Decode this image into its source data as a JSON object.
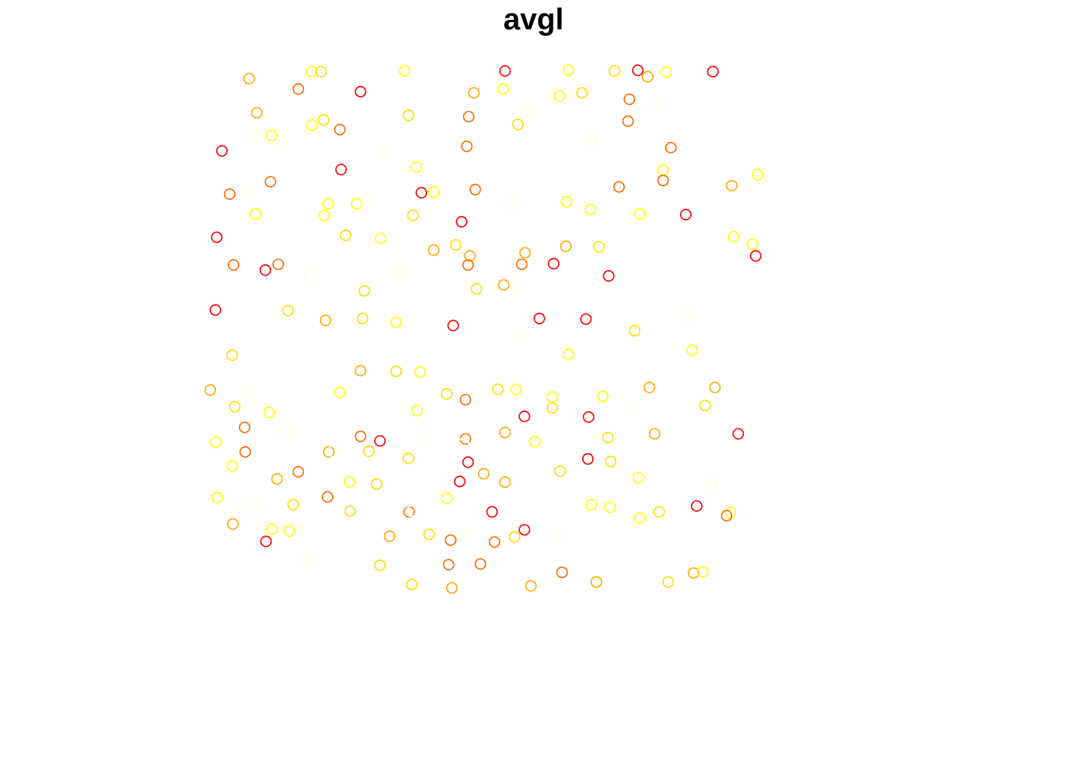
{
  "chart_data": {
    "type": "scatter",
    "title": "avgl",
    "xlabel": "",
    "ylabel": "",
    "xlim": [
      0,
      1
    ],
    "ylim": [
      0,
      1
    ],
    "grid": false,
    "axes_visible": false,
    "legend": "none",
    "marker": "open-circle",
    "color_scale": {
      "name": "heat",
      "low": "#ff0000",
      "high": "#ffffe0",
      "stops": [
        "#ff0000",
        "#ff6a00",
        "#ffaa00",
        "#ffdd00",
        "#ffff00",
        "#ffffe0"
      ]
    },
    "points": [
      {
        "x": 0.061,
        "y": 0.974,
        "c": 2
      },
      {
        "x": 0.158,
        "y": 0.985,
        "c": 4
      },
      {
        "x": 0.172,
        "y": 0.985,
        "c": 3
      },
      {
        "x": 0.137,
        "y": 0.958,
        "c": 1
      },
      {
        "x": 0.233,
        "y": 0.954,
        "c": 0
      },
      {
        "x": 0.301,
        "y": 0.986,
        "c": 4
      },
      {
        "x": 0.456,
        "y": 0.986,
        "c": 0
      },
      {
        "x": 0.554,
        "y": 0.987,
        "c": 4
      },
      {
        "x": 0.625,
        "y": 0.986,
        "c": 3
      },
      {
        "x": 0.661,
        "y": 0.987,
        "c": 0
      },
      {
        "x": 0.676,
        "y": 0.977,
        "c": 2
      },
      {
        "x": 0.705,
        "y": 0.984,
        "c": 4
      },
      {
        "x": 0.777,
        "y": 0.985,
        "c": 0
      },
      {
        "x": 0.408,
        "y": 0.952,
        "c": 2
      },
      {
        "x": 0.54,
        "y": 0.947,
        "c": 4
      },
      {
        "x": 0.575,
        "y": 0.952,
        "c": 3
      },
      {
        "x": 0.646,
        "y": 0.908,
        "c": 1
      },
      {
        "x": 0.073,
        "y": 0.921,
        "c": 2
      },
      {
        "x": 0.096,
        "y": 0.886,
        "c": 4
      },
      {
        "x": 0.158,
        "y": 0.902,
        "c": 4
      },
      {
        "x": 0.176,
        "y": 0.91,
        "c": 3
      },
      {
        "x": 0.201,
        "y": 0.895,
        "c": 1
      },
      {
        "x": 0.307,
        "y": 0.917,
        "c": 3
      },
      {
        "x": 0.4,
        "y": 0.915,
        "c": 1
      },
      {
        "x": 0.453,
        "y": 0.958,
        "c": 4
      },
      {
        "x": 0.476,
        "y": 0.903,
        "c": 3
      },
      {
        "x": 0.492,
        "y": 0.923,
        "c": 5
      },
      {
        "x": 0.648,
        "y": 0.942,
        "c": 1
      },
      {
        "x": 0.693,
        "y": 0.933,
        "c": 5
      },
      {
        "x": 0.019,
        "y": 0.862,
        "c": 0
      },
      {
        "x": 0.066,
        "y": 0.887,
        "c": 5
      },
      {
        "x": 0.112,
        "y": 0.878,
        "c": 5
      },
      {
        "x": 0.271,
        "y": 0.86,
        "c": 5
      },
      {
        "x": 0.397,
        "y": 0.869,
        "c": 1
      },
      {
        "x": 0.589,
        "y": 0.879,
        "c": 5
      },
      {
        "x": 0.712,
        "y": 0.867,
        "c": 1
      },
      {
        "x": 0.7,
        "y": 0.832,
        "c": 4
      },
      {
        "x": 0.203,
        "y": 0.833,
        "c": 0
      },
      {
        "x": 0.319,
        "y": 0.837,
        "c": 4
      },
      {
        "x": 0.094,
        "y": 0.814,
        "c": 1
      },
      {
        "x": 0.031,
        "y": 0.795,
        "c": 1
      },
      {
        "x": 0.055,
        "y": 0.795,
        "c": 5
      },
      {
        "x": 0.327,
        "y": 0.797,
        "c": 0
      },
      {
        "x": 0.346,
        "y": 0.798,
        "c": 4
      },
      {
        "x": 0.41,
        "y": 0.802,
        "c": 1
      },
      {
        "x": 0.632,
        "y": 0.806,
        "c": 1
      },
      {
        "x": 0.7,
        "y": 0.816,
        "c": 1
      },
      {
        "x": 0.806,
        "y": 0.808,
        "c": 2
      },
      {
        "x": 0.846,
        "y": 0.825,
        "c": 4
      },
      {
        "x": 0.183,
        "y": 0.78,
        "c": 4
      },
      {
        "x": 0.244,
        "y": 0.787,
        "c": 5
      },
      {
        "x": 0.227,
        "y": 0.78,
        "c": 4
      },
      {
        "x": 0.071,
        "y": 0.764,
        "c": 4
      },
      {
        "x": 0.177,
        "y": 0.762,
        "c": 4
      },
      {
        "x": 0.314,
        "y": 0.762,
        "c": 3
      },
      {
        "x": 0.389,
        "y": 0.752,
        "c": 0
      },
      {
        "x": 0.471,
        "y": 0.78,
        "c": 5
      },
      {
        "x": 0.551,
        "y": 0.783,
        "c": 4
      },
      {
        "x": 0.588,
        "y": 0.771,
        "c": 4
      },
      {
        "x": 0.664,
        "y": 0.764,
        "c": 4
      },
      {
        "x": 0.735,
        "y": 0.763,
        "c": 0
      },
      {
        "x": 0.011,
        "y": 0.728,
        "c": 0
      },
      {
        "x": 0.21,
        "y": 0.731,
        "c": 3
      },
      {
        "x": 0.264,
        "y": 0.726,
        "c": 4
      },
      {
        "x": 0.346,
        "y": 0.708,
        "c": 2
      },
      {
        "x": 0.38,
        "y": 0.716,
        "c": 3
      },
      {
        "x": 0.402,
        "y": 0.699,
        "c": 2
      },
      {
        "x": 0.487,
        "y": 0.704,
        "c": 2
      },
      {
        "x": 0.55,
        "y": 0.714,
        "c": 2
      },
      {
        "x": 0.601,
        "y": 0.713,
        "c": 3
      },
      {
        "x": 0.809,
        "y": 0.729,
        "c": 4
      },
      {
        "x": 0.838,
        "y": 0.717,
        "c": 4
      },
      {
        "x": 0.843,
        "y": 0.699,
        "c": 0
      },
      {
        "x": 0.037,
        "y": 0.685,
        "c": 1
      },
      {
        "x": 0.086,
        "y": 0.677,
        "c": 0
      },
      {
        "x": 0.106,
        "y": 0.686,
        "c": 1
      },
      {
        "x": 0.155,
        "y": 0.668,
        "c": 5
      },
      {
        "x": 0.293,
        "y": 0.676,
        "c": 5
      },
      {
        "x": 0.399,
        "y": 0.685,
        "c": 1
      },
      {
        "x": 0.482,
        "y": 0.686,
        "c": 1
      },
      {
        "x": 0.531,
        "y": 0.687,
        "c": 0
      },
      {
        "x": 0.616,
        "y": 0.668,
        "c": 0
      },
      {
        "x": 0.412,
        "y": 0.648,
        "c": 3
      },
      {
        "x": 0.454,
        "y": 0.654,
        "c": 2
      },
      {
        "x": 0.471,
        "y": 0.652,
        "c": 5
      },
      {
        "x": 0.239,
        "y": 0.645,
        "c": 3
      },
      {
        "x": 0.009,
        "y": 0.615,
        "c": 0
      },
      {
        "x": 0.121,
        "y": 0.614,
        "c": 3
      },
      {
        "x": 0.236,
        "y": 0.602,
        "c": 3
      },
      {
        "x": 0.288,
        "y": 0.596,
        "c": 4
      },
      {
        "x": 0.179,
        "y": 0.599,
        "c": 2
      },
      {
        "x": 0.376,
        "y": 0.591,
        "c": 0
      },
      {
        "x": 0.476,
        "y": 0.578,
        "c": 5
      },
      {
        "x": 0.509,
        "y": 0.602,
        "c": 0
      },
      {
        "x": 0.581,
        "y": 0.601,
        "c": 0
      },
      {
        "x": 0.656,
        "y": 0.583,
        "c": 3
      },
      {
        "x": 0.736,
        "y": 0.606,
        "c": 5
      },
      {
        "x": 0.745,
        "y": 0.553,
        "c": 4
      },
      {
        "x": 0.035,
        "y": 0.545,
        "c": 3
      },
      {
        "x": 0.233,
        "y": 0.521,
        "c": 2
      },
      {
        "x": 0.288,
        "y": 0.52,
        "c": 3
      },
      {
        "x": 0.325,
        "y": 0.519,
        "c": 4
      },
      {
        "x": 0.554,
        "y": 0.546,
        "c": 4
      },
      {
        "x": 0.679,
        "y": 0.495,
        "c": 2
      },
      {
        "x": 0.001,
        "y": 0.491,
        "c": 2
      },
      {
        "x": 0.062,
        "y": 0.49,
        "c": 5
      },
      {
        "x": 0.092,
        "y": 0.456,
        "c": 4
      },
      {
        "x": 0.039,
        "y": 0.465,
        "c": 3
      },
      {
        "x": 0.201,
        "y": 0.487,
        "c": 4
      },
      {
        "x": 0.32,
        "y": 0.459,
        "c": 4
      },
      {
        "x": 0.366,
        "y": 0.485,
        "c": 3
      },
      {
        "x": 0.395,
        "y": 0.476,
        "c": 1
      },
      {
        "x": 0.445,
        "y": 0.492,
        "c": 3
      },
      {
        "x": 0.473,
        "y": 0.492,
        "c": 4
      },
      {
        "x": 0.486,
        "y": 0.45,
        "c": 0
      },
      {
        "x": 0.529,
        "y": 0.48,
        "c": 4
      },
      {
        "x": 0.529,
        "y": 0.463,
        "c": 3
      },
      {
        "x": 0.607,
        "y": 0.481,
        "c": 4
      },
      {
        "x": 0.651,
        "y": 0.463,
        "c": 5
      },
      {
        "x": 0.78,
        "y": 0.495,
        "c": 2
      },
      {
        "x": 0.765,
        "y": 0.467,
        "c": 3
      },
      {
        "x": 0.585,
        "y": 0.449,
        "c": 0
      },
      {
        "x": 0.816,
        "y": 0.423,
        "c": 0
      },
      {
        "x": 0.01,
        "y": 0.41,
        "c": 4
      },
      {
        "x": 0.054,
        "y": 0.433,
        "c": 1
      },
      {
        "x": 0.124,
        "y": 0.426,
        "c": 5
      },
      {
        "x": 0.233,
        "y": 0.419,
        "c": 1
      },
      {
        "x": 0.329,
        "y": 0.418,
        "c": 5
      },
      {
        "x": 0.307,
        "y": 0.385,
        "c": 3
      },
      {
        "x": 0.395,
        "y": 0.415,
        "c": 1
      },
      {
        "x": 0.456,
        "y": 0.425,
        "c": 2
      },
      {
        "x": 0.502,
        "y": 0.411,
        "c": 4
      },
      {
        "x": 0.615,
        "y": 0.417,
        "c": 3
      },
      {
        "x": 0.687,
        "y": 0.423,
        "c": 2
      },
      {
        "x": 0.584,
        "y": 0.384,
        "c": 0
      },
      {
        "x": 0.055,
        "y": 0.395,
        "c": 1
      },
      {
        "x": 0.184,
        "y": 0.395,
        "c": 2
      },
      {
        "x": 0.246,
        "y": 0.396,
        "c": 3
      },
      {
        "x": 0.263,
        "y": 0.412,
        "c": 0
      },
      {
        "x": 0.399,
        "y": 0.379,
        "c": 0
      },
      {
        "x": 0.423,
        "y": 0.361,
        "c": 2
      },
      {
        "x": 0.035,
        "y": 0.373,
        "c": 4
      },
      {
        "x": 0.19,
        "y": 0.396,
        "c": 5
      },
      {
        "x": 0.392,
        "y": 0.408,
        "c": 5
      },
      {
        "x": 0.541,
        "y": 0.365,
        "c": 3
      },
      {
        "x": 0.619,
        "y": 0.38,
        "c": 3
      },
      {
        "x": 0.662,
        "y": 0.355,
        "c": 4
      },
      {
        "x": 0.137,
        "y": 0.364,
        "c": 1
      },
      {
        "x": 0.104,
        "y": 0.353,
        "c": 2
      },
      {
        "x": 0.216,
        "y": 0.348,
        "c": 4
      },
      {
        "x": 0.258,
        "y": 0.345,
        "c": 3
      },
      {
        "x": 0.386,
        "y": 0.349,
        "c": 0
      },
      {
        "x": 0.456,
        "y": 0.348,
        "c": 2
      },
      {
        "x": 0.012,
        "y": 0.324,
        "c": 4
      },
      {
        "x": 0.076,
        "y": 0.308,
        "c": 5
      },
      {
        "x": 0.129,
        "y": 0.313,
        "c": 3
      },
      {
        "x": 0.182,
        "y": 0.325,
        "c": 1
      },
      {
        "x": 0.308,
        "y": 0.302,
        "c": 1
      },
      {
        "x": 0.366,
        "y": 0.323,
        "c": 4
      },
      {
        "x": 0.05,
        "y": 0.309,
        "c": 5
      },
      {
        "x": 0.123,
        "y": 0.272,
        "c": 4
      },
      {
        "x": 0.036,
        "y": 0.283,
        "c": 2
      },
      {
        "x": 0.096,
        "y": 0.275,
        "c": 4
      },
      {
        "x": 0.087,
        "y": 0.256,
        "c": 0
      },
      {
        "x": 0.311,
        "y": 0.303,
        "c": 5
      },
      {
        "x": 0.339,
        "y": 0.267,
        "c": 3
      },
      {
        "x": 0.389,
        "y": 0.267,
        "c": 5
      },
      {
        "x": 0.436,
        "y": 0.302,
        "c": 0
      },
      {
        "x": 0.44,
        "y": 0.255,
        "c": 1
      },
      {
        "x": 0.589,
        "y": 0.313,
        "c": 4
      },
      {
        "x": 0.664,
        "y": 0.292,
        "c": 4
      },
      {
        "x": 0.217,
        "y": 0.303,
        "c": 3
      },
      {
        "x": 0.278,
        "y": 0.264,
        "c": 2
      },
      {
        "x": 0.372,
        "y": 0.258,
        "c": 1
      },
      {
        "x": 0.471,
        "y": 0.263,
        "c": 3
      },
      {
        "x": 0.486,
        "y": 0.274,
        "c": 0
      },
      {
        "x": 0.533,
        "y": 0.267,
        "c": 5
      },
      {
        "x": 0.618,
        "y": 0.309,
        "c": 4
      },
      {
        "x": 0.694,
        "y": 0.302,
        "c": 3
      },
      {
        "x": 0.804,
        "y": 0.301,
        "c": 4
      },
      {
        "x": 0.798,
        "y": 0.296,
        "c": 1
      },
      {
        "x": 0.752,
        "y": 0.311,
        "c": 0
      },
      {
        "x": 0.775,
        "y": 0.344,
        "c": 5
      },
      {
        "x": 0.154,
        "y": 0.227,
        "c": 5
      },
      {
        "x": 0.263,
        "y": 0.219,
        "c": 3
      },
      {
        "x": 0.418,
        "y": 0.221,
        "c": 1
      },
      {
        "x": 0.369,
        "y": 0.22,
        "c": 1
      },
      {
        "x": 0.312,
        "y": 0.189,
        "c": 3
      },
      {
        "x": 0.374,
        "y": 0.184,
        "c": 2
      },
      {
        "x": 0.544,
        "y": 0.208,
        "c": 1
      },
      {
        "x": 0.496,
        "y": 0.187,
        "c": 2
      },
      {
        "x": 0.597,
        "y": 0.193,
        "c": 2
      },
      {
        "x": 0.747,
        "y": 0.207,
        "c": 2
      },
      {
        "x": 0.708,
        "y": 0.193,
        "c": 3
      },
      {
        "x": 0.761,
        "y": 0.209,
        "c": 4
      }
    ]
  }
}
